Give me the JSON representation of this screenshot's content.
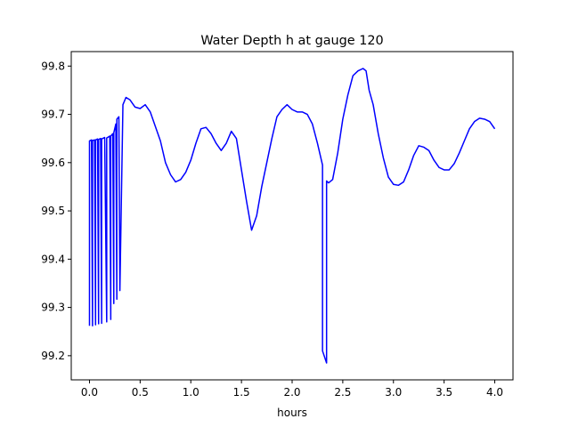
{
  "chart_data": {
    "type": "line",
    "title": "Water Depth h at gauge 120",
    "xlabel": "hours",
    "ylabel": "",
    "xlim": [
      -0.18,
      4.18
    ],
    "ylim": [
      99.15,
      99.83
    ],
    "xticks": [
      0.0,
      0.5,
      1.0,
      1.5,
      2.0,
      2.5,
      3.0,
      3.5,
      4.0
    ],
    "xtick_labels": [
      "0.0",
      "0.5",
      "1.0",
      "1.5",
      "2.0",
      "2.5",
      "3.0",
      "3.5",
      "4.0"
    ],
    "yticks": [
      99.2,
      99.3,
      99.4,
      99.5,
      99.6,
      99.7,
      99.8
    ],
    "ytick_labels": [
      "99.2",
      "99.3",
      "99.4",
      "99.5",
      "99.6",
      "99.7",
      "99.8"
    ],
    "grid": false,
    "legend": "none",
    "series": [
      {
        "color": "#0000ff",
        "x": [
          0.0,
          0.0,
          0.02,
          0.03,
          0.03,
          0.05,
          0.06,
          0.06,
          0.08,
          0.09,
          0.09,
          0.11,
          0.12,
          0.12,
          0.15,
          0.17,
          0.17,
          0.2,
          0.21,
          0.21,
          0.23,
          0.24,
          0.24,
          0.26,
          0.27,
          0.27,
          0.29,
          0.3,
          0.33,
          0.36,
          0.4,
          0.45,
          0.5,
          0.55,
          0.6,
          0.65,
          0.7,
          0.75,
          0.8,
          0.85,
          0.9,
          0.95,
          1.0,
          1.05,
          1.1,
          1.15,
          1.2,
          1.25,
          1.3,
          1.35,
          1.4,
          1.45,
          1.5,
          1.55,
          1.6,
          1.65,
          1.7,
          1.75,
          1.8,
          1.85,
          1.9,
          1.95,
          2.0,
          2.05,
          2.1,
          2.15,
          2.2,
          2.25,
          2.3,
          2.3,
          2.34,
          2.34,
          2.36,
          2.4,
          2.45,
          2.5,
          2.55,
          2.6,
          2.65,
          2.7,
          2.73,
          2.76,
          2.8,
          2.85,
          2.9,
          2.95,
          3.0,
          3.05,
          3.1,
          3.15,
          3.2,
          3.25,
          3.3,
          3.35,
          3.4,
          3.45,
          3.5,
          3.55,
          3.6,
          3.65,
          3.7,
          3.75,
          3.8,
          3.85,
          3.9,
          3.95,
          4.0
        ],
        "y": [
          99.262,
          99.645,
          99.647,
          99.262,
          99.646,
          99.647,
          99.264,
          99.647,
          99.649,
          99.266,
          99.648,
          99.65,
          99.267,
          99.649,
          99.652,
          99.27,
          99.651,
          99.655,
          99.275,
          99.655,
          99.66,
          99.308,
          99.662,
          99.68,
          99.317,
          99.69,
          99.695,
          99.335,
          99.72,
          99.735,
          99.73,
          99.715,
          99.712,
          99.72,
          99.705,
          99.675,
          99.645,
          99.6,
          99.575,
          99.56,
          99.565,
          99.58,
          99.605,
          99.64,
          99.67,
          99.673,
          99.66,
          99.64,
          99.625,
          99.64,
          99.665,
          99.65,
          99.585,
          99.52,
          99.46,
          99.49,
          99.55,
          99.6,
          99.65,
          99.695,
          99.71,
          99.72,
          99.71,
          99.705,
          99.705,
          99.7,
          99.68,
          99.64,
          99.595,
          99.21,
          99.185,
          99.562,
          99.558,
          99.565,
          99.62,
          99.69,
          99.74,
          99.78,
          99.79,
          99.795,
          99.79,
          99.75,
          99.72,
          99.66,
          99.61,
          99.57,
          99.555,
          99.553,
          99.56,
          99.585,
          99.615,
          99.635,
          99.632,
          99.625,
          99.605,
          99.59,
          99.585,
          99.585,
          99.598,
          99.62,
          99.645,
          99.67,
          99.685,
          99.692,
          99.69,
          99.685,
          99.67
        ]
      }
    ]
  }
}
